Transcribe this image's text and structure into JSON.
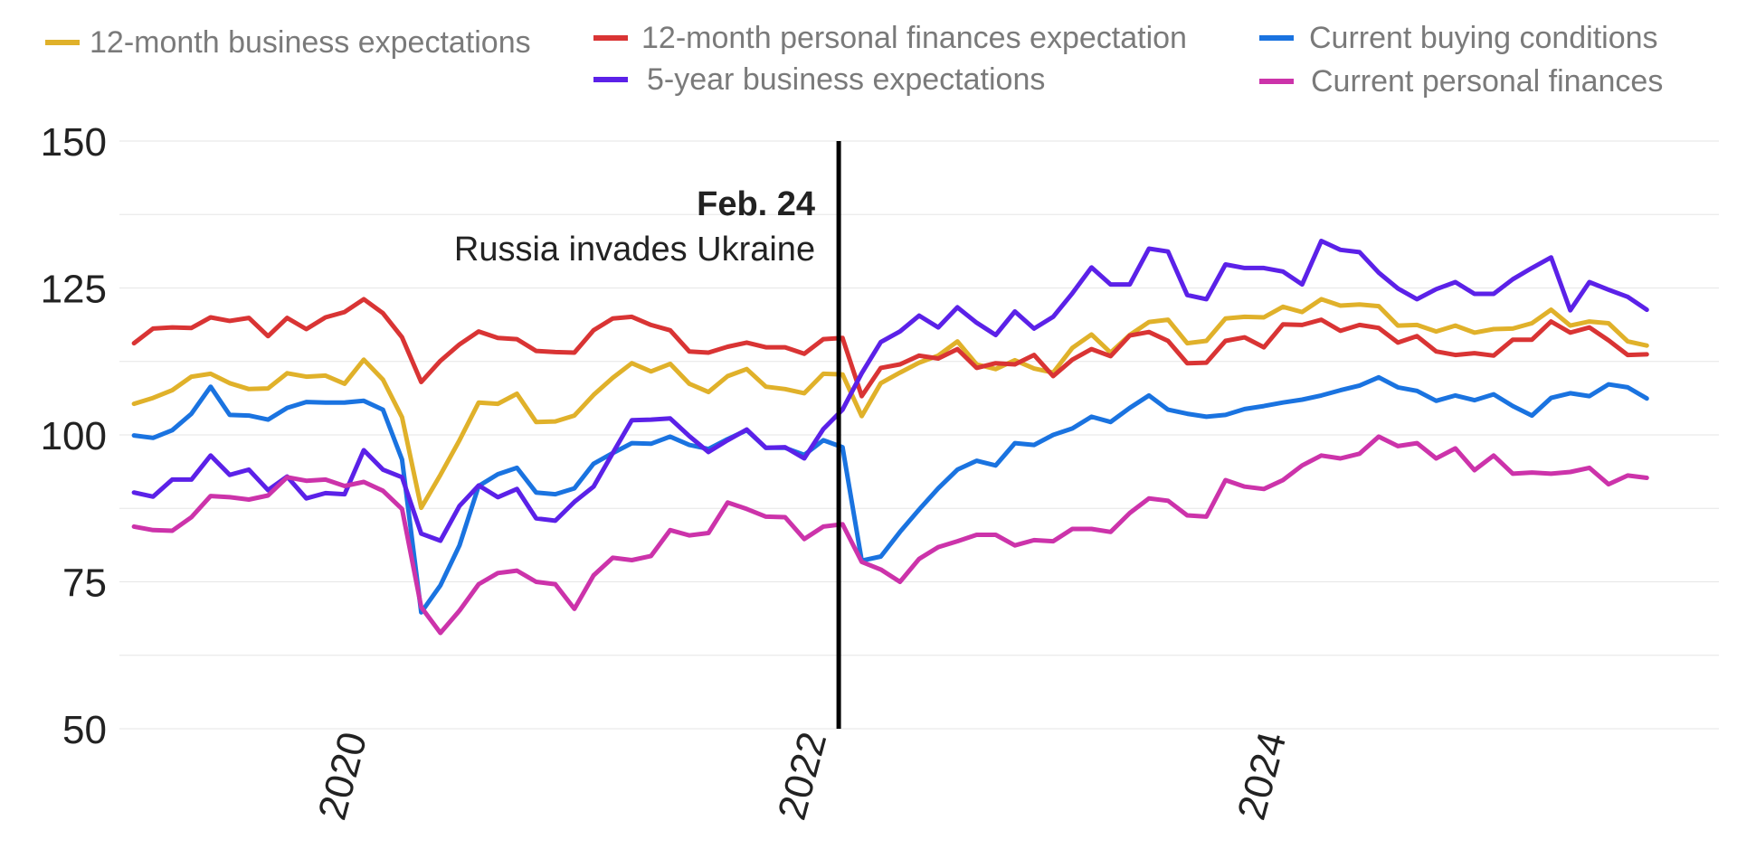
{
  "chart_data": {
    "type": "line",
    "title": "",
    "xlabel": "",
    "ylabel": "",
    "ylim": [
      50,
      150
    ],
    "yticks": [
      50,
      75,
      100,
      125,
      150
    ],
    "xticks": [
      2020,
      2022,
      2024
    ],
    "xlim": [
      2019.02,
      2025.98
    ],
    "grid": true,
    "legend_position": "top",
    "x_start": 2019.0833,
    "x_step": 0.08333,
    "annotation": {
      "x": 2022.15,
      "line1": "Feb. 24",
      "line2": "Russia invades Ukraine"
    },
    "series": [
      {
        "name": "12-month business expectations",
        "color": "#E0B12A",
        "values": [
          105.3,
          106.3,
          107.6,
          109.9,
          110.4,
          108.8,
          107.8,
          107.9,
          110.5,
          109.9,
          110.1,
          108.7,
          112.8,
          109.4,
          103.0,
          87.6,
          93.2,
          99.1,
          105.5,
          105.3,
          107.0,
          102.2,
          102.3,
          103.3,
          106.8,
          109.7,
          112.2,
          110.8,
          112.1,
          108.7,
          107.3,
          110.0,
          111.2,
          108.2,
          107.8,
          107.1,
          110.4,
          110.3,
          103.2,
          108.8,
          110.6,
          112.3,
          113.5,
          115.9,
          112.0,
          111.2,
          112.7,
          111.3,
          110.6,
          114.8,
          117.1,
          114.0,
          117.0,
          119.2,
          119.6,
          115.6,
          116.0,
          119.8,
          120.1,
          120.0,
          121.8,
          120.9,
          123.1,
          122.0,
          122.2,
          121.9,
          118.6,
          118.7,
          117.6,
          118.6,
          117.4,
          118.0,
          118.1,
          119.0,
          121.3,
          118.6,
          119.3,
          119.0,
          115.9,
          115.2
        ]
      },
      {
        "name": "12-month personal finances expectation",
        "color": "#D93434",
        "values": [
          115.6,
          118.1,
          118.3,
          118.2,
          120.0,
          119.4,
          119.9,
          116.8,
          119.9,
          118.0,
          120.0,
          120.9,
          123.1,
          120.7,
          116.6,
          109.0,
          112.6,
          115.4,
          117.6,
          116.5,
          116.3,
          114.3,
          114.1,
          114.0,
          117.8,
          119.8,
          120.1,
          118.7,
          117.8,
          114.2,
          114.0,
          115.0,
          115.7,
          114.9,
          114.9,
          113.8,
          116.3,
          116.5,
          106.6,
          111.4,
          112.0,
          113.5,
          113.0,
          114.6,
          111.4,
          112.2,
          112.0,
          113.6,
          110.0,
          112.8,
          114.6,
          113.4,
          116.9,
          117.5,
          116.0,
          112.2,
          112.3,
          116.0,
          116.6,
          114.9,
          118.8,
          118.7,
          119.6,
          117.7,
          118.7,
          118.2,
          115.7,
          116.8,
          114.2,
          113.6,
          113.9,
          113.5,
          116.2,
          116.2,
          119.3,
          117.4,
          118.3,
          116.1,
          113.6,
          113.7
        ]
      },
      {
        "name": "Current buying conditions",
        "color": "#1A73E0",
        "values": [
          99.9,
          99.5,
          100.8,
          103.6,
          108.2,
          103.4,
          103.3,
          102.6,
          104.6,
          105.6,
          105.5,
          105.5,
          105.8,
          104.3,
          95.8,
          69.8,
          74.4,
          81.2,
          91.3,
          93.3,
          94.4,
          90.2,
          89.9,
          90.9,
          95.1,
          96.9,
          98.6,
          98.5,
          99.7,
          98.3,
          97.6,
          99.3,
          100.8,
          97.8,
          97.8,
          96.6,
          99.1,
          97.9,
          78.6,
          79.3,
          83.5,
          87.3,
          90.9,
          94.1,
          95.6,
          94.8,
          98.6,
          98.3,
          100.0,
          101.1,
          103.1,
          102.2,
          104.6,
          106.7,
          104.3,
          103.6,
          103.1,
          103.4,
          104.4,
          104.9,
          105.5,
          106.0,
          106.7,
          107.6,
          108.4,
          109.8,
          108.1,
          107.5,
          105.8,
          106.7,
          105.9,
          106.9,
          104.9,
          103.3,
          106.3,
          107.1,
          106.6,
          108.6,
          108.1,
          106.2
        ]
      },
      {
        "name": "5-year business expectations",
        "color": "#5B21E8",
        "values": [
          90.2,
          89.5,
          92.4,
          92.4,
          96.5,
          93.2,
          94.1,
          90.6,
          92.9,
          89.2,
          90.1,
          89.9,
          97.4,
          94.1,
          92.8,
          83.2,
          82.0,
          87.9,
          91.4,
          89.4,
          90.8,
          85.8,
          85.4,
          88.6,
          91.2,
          96.9,
          102.5,
          102.6,
          102.8,
          99.8,
          97.1,
          99.1,
          100.9,
          97.8,
          97.9,
          96.0,
          101.0,
          104.3,
          110.5,
          115.8,
          117.6,
          120.3,
          118.3,
          121.7,
          119.1,
          117.0,
          121.0,
          118.1,
          120.1,
          124.1,
          128.5,
          125.6,
          125.6,
          131.7,
          131.2,
          123.8,
          123.1,
          129.0,
          128.4,
          128.4,
          127.8,
          125.6,
          133.0,
          131.5,
          131.1,
          127.6,
          124.9,
          123.1,
          124.8,
          126.0,
          124.0,
          124.0,
          126.5,
          128.4,
          130.2,
          121.2,
          126.0,
          124.7,
          123.5,
          121.3
        ]
      },
      {
        "name": "Current personal finances",
        "color": "#CC33AA",
        "values": [
          84.4,
          83.8,
          83.7,
          86.0,
          89.6,
          89.4,
          89.0,
          89.7,
          92.8,
          92.2,
          92.4,
          91.3,
          92.0,
          90.5,
          87.4,
          70.7,
          66.3,
          70.1,
          74.6,
          76.5,
          76.9,
          75.0,
          74.6,
          70.4,
          76.1,
          79.1,
          78.7,
          79.4,
          83.8,
          82.9,
          83.3,
          88.5,
          87.4,
          86.1,
          86.0,
          82.3,
          84.4,
          84.8,
          78.4,
          77.1,
          75.0,
          78.9,
          80.9,
          81.9,
          83.0,
          83.0,
          81.2,
          82.1,
          81.9,
          84.0,
          84.0,
          83.5,
          86.7,
          89.2,
          88.8,
          86.3,
          86.1,
          92.3,
          91.2,
          90.8,
          92.3,
          94.8,
          96.5,
          96.0,
          96.8,
          99.7,
          98.1,
          98.6,
          96.0,
          97.7,
          94.0,
          96.5,
          93.4,
          93.6,
          93.4,
          93.7,
          94.4,
          91.6,
          93.1,
          92.7
        ]
      }
    ],
    "legend": [
      {
        "label": "12-month business expectations",
        "color": "#E0B12A"
      },
      {
        "label": "12-month personal finances expectation",
        "color": "#D93434"
      },
      {
        "label": "Current buying conditions",
        "color": "#1A73E0"
      },
      {
        "label": "5-year business expectations",
        "color": "#5B21E8"
      },
      {
        "label": "Current personal finances",
        "color": "#CC33AA"
      }
    ]
  }
}
